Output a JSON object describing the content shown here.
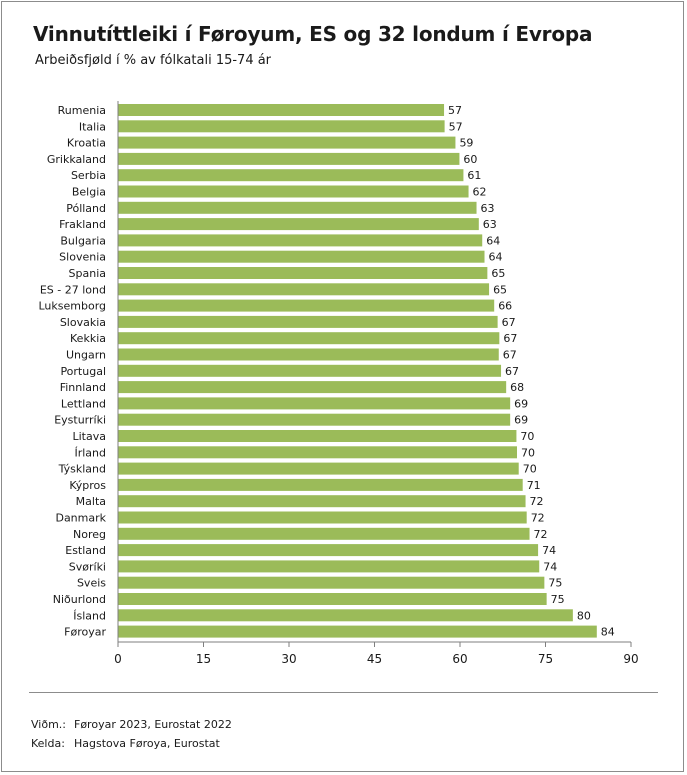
{
  "title": "Vinnutíttleiki í Føroyum, ES og 32 londum í Evropa",
  "subtitle": "Arbeiðsfjøld í % av fólkatali 15-74 ár",
  "footer": {
    "note_label": "Viðm.:",
    "note_text": "Føroyar 2023, Eurostat 2022",
    "source_label": "Kelda:",
    "source_text": "Hagstova Føroya, Eurostat"
  },
  "colors": {
    "bar": "#9bbb59",
    "axis": "#7f7f7f",
    "text": "#1a1a1a"
  },
  "chart_data": {
    "type": "bar",
    "orientation": "horizontal",
    "categories": [
      "Rumenia",
      "Italia",
      "Kroatia",
      "Grikkaland",
      "Serbia",
      "Belgia",
      "Pólland",
      "Frakland",
      "Bulgaria",
      "Slovenia",
      "Spania",
      "ES - 27 lond",
      "Luksemborg",
      "Slovakia",
      "Kekkia",
      "Ungarn",
      "Portugal",
      "Finnland",
      "Lettland",
      "Eysturríki",
      "Litava",
      "Írland",
      "Týskland",
      "Kýpros",
      "Malta",
      "Danmark",
      "Noreg",
      "Estland",
      "Svøríki",
      "Sveis",
      "Niðurlond",
      "Ísland",
      "Føroyar"
    ],
    "values": [
      57,
      57,
      59,
      60,
      61,
      62,
      63,
      63,
      64,
      64,
      65,
      65,
      66,
      67,
      67,
      67,
      67,
      68,
      69,
      69,
      70,
      70,
      70,
      71,
      72,
      72,
      72,
      74,
      74,
      75,
      75,
      80,
      84
    ],
    "bar_lengths": [
      57.2,
      57.3,
      59.2,
      59.9,
      60.6,
      61.5,
      62.9,
      63.3,
      63.9,
      64.3,
      64.8,
      65.1,
      66.0,
      66.6,
      66.9,
      66.8,
      67.2,
      68.1,
      68.8,
      68.8,
      69.9,
      70.0,
      70.3,
      71.0,
      71.5,
      71.7,
      72.2,
      73.7,
      73.9,
      74.8,
      75.2,
      79.8,
      84.0
    ],
    "xlim": [
      0,
      90
    ],
    "xticks": [
      0,
      15,
      30,
      45,
      60,
      75,
      90
    ],
    "grid": false,
    "legend": "none",
    "data_labels": true
  }
}
